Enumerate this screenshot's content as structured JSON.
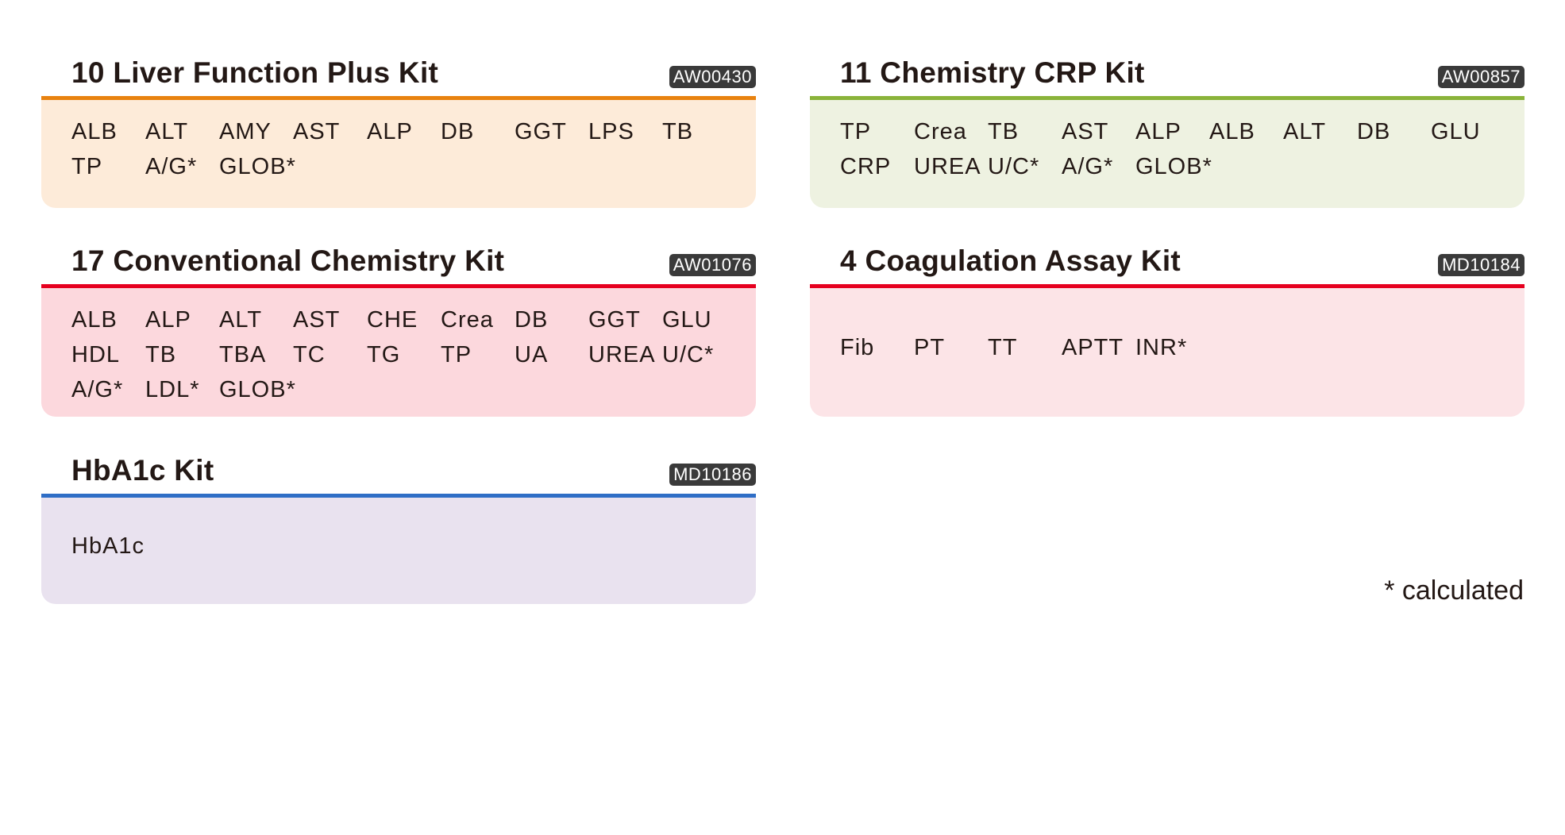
{
  "kits": [
    {
      "title": "10 Liver Function Plus Kit",
      "code": "AW00430",
      "accent": "#e8820f",
      "background": "#fdebd9",
      "parameters": [
        "ALB",
        "ALT",
        "AMY",
        "AST",
        "ALP",
        "DB",
        "GGT",
        "LPS",
        "TB",
        "TP",
        "A/G*",
        "GLOB*"
      ]
    },
    {
      "title": "11 Chemistry CRP Kit",
      "code": "AW00857",
      "accent": "#8ab33a",
      "background": "#eef2e1",
      "parameters": [
        "TP",
        "Crea",
        "TB",
        "AST",
        "ALP",
        "ALB",
        "ALT",
        "DB",
        "GLU",
        "CRP",
        "UREA",
        "U/C*",
        "A/G*",
        "GLOB*"
      ]
    },
    {
      "title": "17 Conventional Chemistry Kit",
      "code": "AW01076",
      "accent": "#e6001f",
      "background": "#fcd8dd",
      "parameters": [
        "ALB",
        "ALP",
        "ALT",
        "AST",
        "CHE",
        "Crea",
        "DB",
        "GGT",
        "GLU",
        "HDL",
        "TB",
        "TBA",
        "TC",
        "TG",
        "TP",
        "UA",
        "UREA",
        "U/C*",
        "A/G*",
        "LDL*",
        "GLOB*"
      ]
    },
    {
      "title": "4 Coagulation Assay Kit",
      "code": "MD10184",
      "accent": "#e6001f",
      "background": "#fce4e7",
      "parameters": [
        "Fib",
        "PT",
        "TT",
        "APTT",
        "INR*"
      ]
    },
    {
      "title": "HbA1c Kit",
      "code": "MD10186",
      "accent": "#2f6ec6",
      "background": "#e9e2ef",
      "parameters": [
        "HbA1c"
      ]
    }
  ],
  "footnote": "* calculated"
}
